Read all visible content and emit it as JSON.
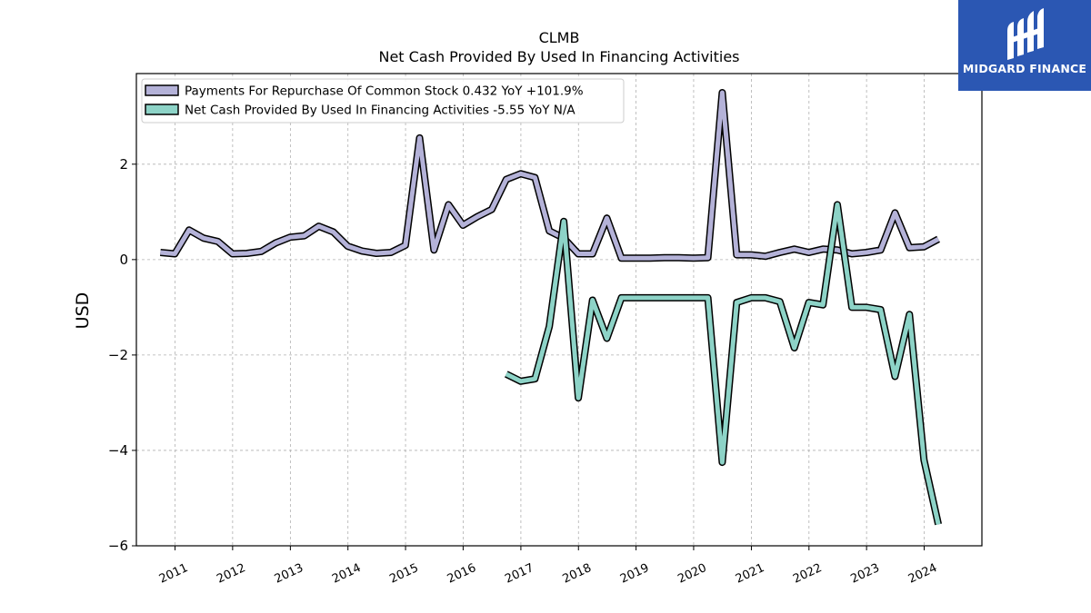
{
  "brand": {
    "name": "MIDGARD FINANCE",
    "color": "#2b57b3"
  },
  "chart_data": {
    "type": "line",
    "title": "CLMB",
    "subtitle": "Net Cash Provided By Used In Financing Activities",
    "ylabel": "USD",
    "xlabel": "",
    "ylim": [
      -6,
      3.9
    ],
    "yticks": [
      2,
      0,
      -2,
      -4,
      -6
    ],
    "ytick_labels": [
      "2",
      "0",
      "−2",
      "−4",
      "−6"
    ],
    "xlim": [
      "2010-05-01",
      "2025-01-01"
    ],
    "xticks": [
      "2011-01-01",
      "2012-01-01",
      "2013-01-01",
      "2014-01-01",
      "2015-01-01",
      "2016-01-01",
      "2017-01-01",
      "2018-01-01",
      "2019-01-01",
      "2020-01-01",
      "2021-01-01",
      "2022-01-01",
      "2023-01-01",
      "2024-01-01"
    ],
    "xtick_labels": [
      "2011",
      "2012",
      "2013",
      "2014",
      "2015",
      "2016",
      "2017",
      "2018",
      "2019",
      "2020",
      "2021",
      "2022",
      "2023",
      "2024"
    ],
    "grid": true,
    "legend_position": "top-left",
    "series": [
      {
        "name": "Payments For Repurchase Of Common Stock",
        "legend_label": "Payments For Repurchase Of Common Stock  0.432 YoY +101.9%",
        "color": "#b4b2d8",
        "x": [
          "2010-09-30",
          "2010-12-31",
          "2011-03-31",
          "2011-06-30",
          "2011-09-30",
          "2011-12-31",
          "2012-03-31",
          "2012-06-30",
          "2012-09-30",
          "2012-12-31",
          "2013-03-31",
          "2013-06-30",
          "2013-09-30",
          "2013-12-31",
          "2014-03-31",
          "2014-06-30",
          "2014-09-30",
          "2014-12-31",
          "2015-03-31",
          "2015-06-30",
          "2015-09-30",
          "2015-12-31",
          "2016-03-31",
          "2016-06-30",
          "2016-09-30",
          "2016-12-31",
          "2017-03-31",
          "2017-06-30",
          "2017-09-30",
          "2017-12-31",
          "2018-03-31",
          "2018-06-30",
          "2018-09-30",
          "2018-12-31",
          "2019-03-31",
          "2019-06-30",
          "2019-09-30",
          "2019-12-31",
          "2020-03-31",
          "2020-06-30",
          "2020-09-30",
          "2020-12-31",
          "2021-03-31",
          "2021-06-30",
          "2021-09-30",
          "2021-12-31",
          "2022-03-31",
          "2022-06-30",
          "2022-09-30",
          "2022-12-31",
          "2023-03-31",
          "2023-06-30",
          "2023-09-30",
          "2023-12-31",
          "2024-03-31"
        ],
        "values": [
          0.15,
          0.12,
          0.62,
          0.45,
          0.38,
          0.12,
          0.13,
          0.17,
          0.35,
          0.47,
          0.5,
          0.7,
          0.58,
          0.28,
          0.18,
          0.13,
          0.15,
          0.3,
          2.55,
          0.2,
          1.15,
          0.72,
          0.9,
          1.05,
          1.68,
          1.8,
          1.72,
          0.6,
          0.45,
          0.12,
          0.12,
          0.87,
          0.03,
          0.03,
          0.03,
          0.04,
          0.04,
          0.03,
          0.04,
          3.5,
          0.1,
          0.1,
          0.07,
          0.15,
          0.22,
          0.15,
          0.22,
          0.2,
          0.12,
          0.15,
          0.2,
          0.98,
          0.25,
          0.27,
          0.43
        ]
      },
      {
        "name": "Net Cash Provided By Used In Financing Activities",
        "legend_label": "Net Cash Provided By Used In Financing Activities  -5.55 YoY N/A",
        "color": "#8dd3c7",
        "x": [
          "2016-09-30",
          "2016-12-31",
          "2017-03-31",
          "2017-06-30",
          "2017-09-30",
          "2017-12-31",
          "2018-03-31",
          "2018-06-30",
          "2018-09-30",
          "2018-12-31",
          "2019-03-31",
          "2019-06-30",
          "2019-09-30",
          "2019-12-31",
          "2020-03-31",
          "2020-06-30",
          "2020-09-30",
          "2020-12-31",
          "2021-03-31",
          "2021-06-30",
          "2021-09-30",
          "2021-12-31",
          "2022-03-31",
          "2022-06-30",
          "2022-09-30",
          "2022-12-31",
          "2023-03-31",
          "2023-06-30",
          "2023-09-30",
          "2023-12-31",
          "2024-03-31"
        ],
        "values": [
          -2.4,
          -2.55,
          -2.5,
          -1.4,
          0.8,
          -2.9,
          -0.85,
          -1.65,
          -0.8,
          -0.8,
          -0.8,
          -0.8,
          -0.8,
          -0.8,
          -0.8,
          -4.25,
          -0.9,
          -0.8,
          -0.8,
          -0.88,
          -1.85,
          -0.9,
          -0.95,
          1.15,
          -1.0,
          -1.0,
          -1.05,
          -2.45,
          -1.15,
          -4.2,
          -5.55
        ]
      }
    ]
  }
}
